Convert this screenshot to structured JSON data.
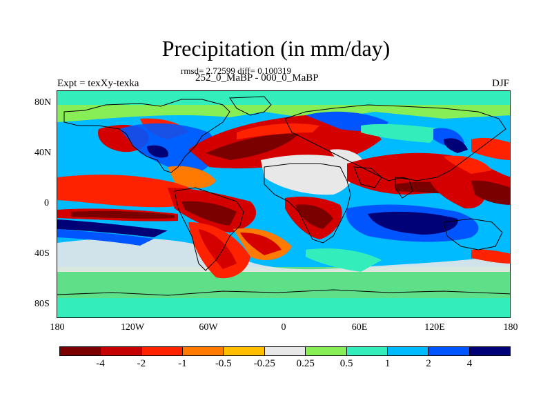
{
  "title": "Precipitation (in mm/day)",
  "stats": "rmsd= 2.72599 diff= 0.100319",
  "subtitle": "252_0_MaBP - 000_0_MaBP",
  "experiment": "Expt = texXy-texka",
  "season": "DJF",
  "y_axis_labels": [
    "80N",
    "40N",
    "0",
    "40S",
    "80S"
  ],
  "x_axis_labels": [
    "180",
    "120W",
    "60W",
    "0",
    "60E",
    "120E",
    "180"
  ],
  "colorbar": {
    "colors": [
      "#7a0000",
      "#c40000",
      "#ff2200",
      "#ff7a00",
      "#ffbf00",
      "#e8e8e8",
      "#88ee55",
      "#33eebb",
      "#00bbff",
      "#0055ff",
      "#000077"
    ],
    "labels": [
      "-4",
      "-2",
      "-1",
      "-0.5",
      "-0.25",
      "0.25",
      "0.5",
      "1",
      "2",
      "4"
    ]
  },
  "field_colors": {
    "dry_strong": "#7a0000",
    "dry": "#d40000",
    "dry_mild": "#ff2200",
    "dry_weak": "#ff7a00",
    "neutral": "#e8e8e8",
    "wet_weak": "#88ee55",
    "wet_mild": "#33eebb",
    "wet": "#00bbff",
    "wet_strong": "#0055ff",
    "wet_extreme": "#000077",
    "outline": "#000000"
  }
}
